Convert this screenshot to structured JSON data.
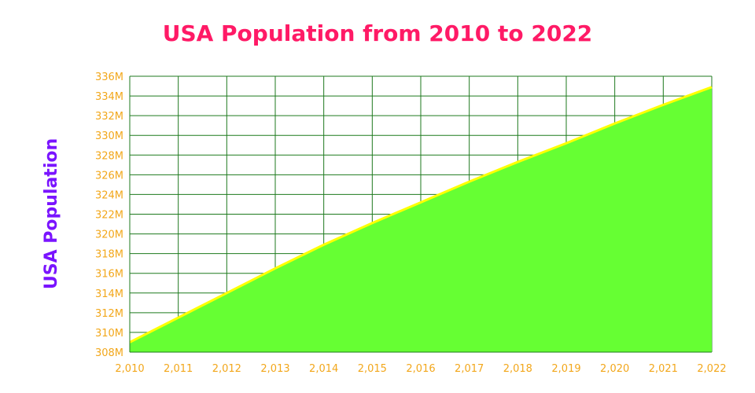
{
  "colors": {
    "title": "#ff1a66",
    "ylabel": "#7a14ff",
    "tick": "#f2a71b",
    "grid": "#1e7a1e",
    "area_fill": "#66ff33",
    "area_line": "#ffff00",
    "background": "#ffffff"
  },
  "chart_data": {
    "type": "area",
    "title": "USA Population from 2010 to 2022",
    "xlabel": "",
    "ylabel": "USA Population",
    "x": [
      2010,
      2011,
      2012,
      2013,
      2014,
      2015,
      2016,
      2017,
      2018,
      2019,
      2020,
      2021,
      2022
    ],
    "x_tick_labels": [
      "2,010",
      "2,011",
      "2,012",
      "2,013",
      "2,014",
      "2,015",
      "2,016",
      "2,017",
      "2,018",
      "2,019",
      "2,020",
      "2,021",
      "2,022"
    ],
    "y_tick_values": [
      308,
      310,
      312,
      314,
      316,
      318,
      320,
      322,
      324,
      326,
      328,
      330,
      332,
      334,
      336
    ],
    "y_tick_labels": [
      "308M",
      "310M",
      "312M",
      "314M",
      "316M",
      "318M",
      "320M",
      "322M",
      "324M",
      "326M",
      "328M",
      "330M",
      "332M",
      "334M",
      "336M"
    ],
    "ylim": [
      308,
      336
    ],
    "xlim": [
      2010,
      2022
    ],
    "grid": true,
    "legend": "none",
    "series": [
      {
        "values": [
          309.0,
          311.5,
          314.0,
          316.5,
          318.9,
          321.1,
          323.2,
          325.3,
          327.3,
          329.2,
          331.2,
          333.1,
          334.9
        ]
      }
    ]
  }
}
